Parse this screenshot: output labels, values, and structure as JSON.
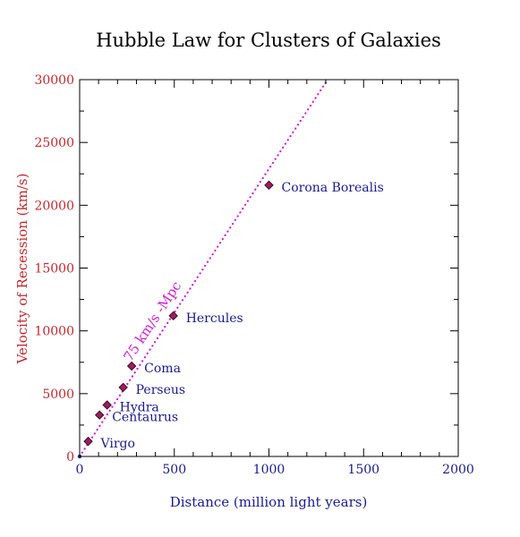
{
  "chart_data": {
    "type": "scatter",
    "title": "Hubble Law for Clusters of Galaxies",
    "xlabel": "Distance (million light years)",
    "ylabel": "Velocity of Recession (km/s)",
    "xlim": [
      0,
      2000
    ],
    "ylim": [
      0,
      30000
    ],
    "x_ticks": [
      0,
      500,
      1000,
      1500,
      2000
    ],
    "y_ticks": [
      0,
      5000,
      10000,
      15000,
      20000,
      25000,
      30000
    ],
    "x_tick_labels": [
      "0",
      "500",
      "1000",
      "1500",
      "2000"
    ],
    "y_tick_labels": [
      "0",
      "5000",
      "10000",
      "15000",
      "20000",
      "25000",
      "30000"
    ],
    "grid": false,
    "points": [
      {
        "name": "Virgo",
        "x": 45,
        "y": 1200
      },
      {
        "name": "Centaurus",
        "x": 105,
        "y": 3300
      },
      {
        "name": "Hydra",
        "x": 145,
        "y": 4100
      },
      {
        "name": "Perseus",
        "x": 230,
        "y": 5500
      },
      {
        "name": "Coma",
        "x": 275,
        "y": 7200
      },
      {
        "name": "Hercules",
        "x": 495,
        "y": 11200
      },
      {
        "name": "Corona Borealis",
        "x": 1000,
        "y": 21600
      }
    ],
    "fit_line": {
      "label": "75 km/s -Mpc",
      "x": [
        0,
        1310
      ],
      "y": [
        0,
        30000
      ]
    },
    "colors": {
      "title": "#000000",
      "axis": "#000000",
      "x_tick_labels": "#1a1a8c",
      "x_label": "#1a1a8c",
      "y_tick_labels": "#c0282e",
      "y_label": "#c0282e",
      "point_labels": "#1a1a8c",
      "marker": "#9c1f5a",
      "marker_edge": "#3a0a2a",
      "fit_line": "#cc22cc"
    }
  }
}
